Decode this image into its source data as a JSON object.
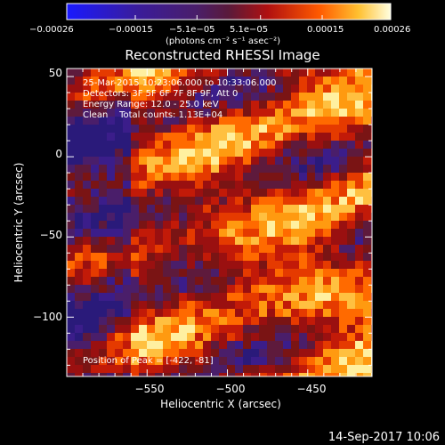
{
  "chart_data": {
    "type": "heatmap",
    "title": "Reconstructed RHESSI Image",
    "xlabel": "Heliocentric X (arcsec)",
    "ylabel": "Heliocentric Y (arcsec)",
    "xlim": [
      -600,
      -410
    ],
    "ylim": [
      -137,
      55
    ],
    "x_ticks": [
      -550,
      -500,
      -450
    ],
    "x_tick_labels": [
      "−550",
      "−500",
      "−450"
    ],
    "y_ticks": [
      50,
      0,
      -50,
      -100
    ],
    "y_tick_labels": [
      "50",
      "0",
      "−50",
      "−100"
    ],
    "annotations": [
      "25-Mar-2015 10:23:06.000 to 10:33:06.000",
      "Detectors: 3F 5F 6F 7F 8F 9F, Att 0",
      "Energy Range: 12.0 - 25.0 keV",
      "Clean    Total counts: 1.13E+04"
    ],
    "peak_label": "Position of Peak = [-422, -81]",
    "peak_position": [
      -422,
      -81
    ],
    "colorbar": {
      "min": -0.00026,
      "max": 0.00026,
      "tick_labels": [
        "−0.00026",
        "−0.00015",
        "−5.1e−05",
        "5.1e−05",
        "0.00015",
        "0.00026"
      ],
      "unit_label": "(photons cm⁻² s⁻¹ asec⁻²)"
    }
  },
  "footer": {
    "timestamp": "14-Sep-2017 10:06"
  }
}
